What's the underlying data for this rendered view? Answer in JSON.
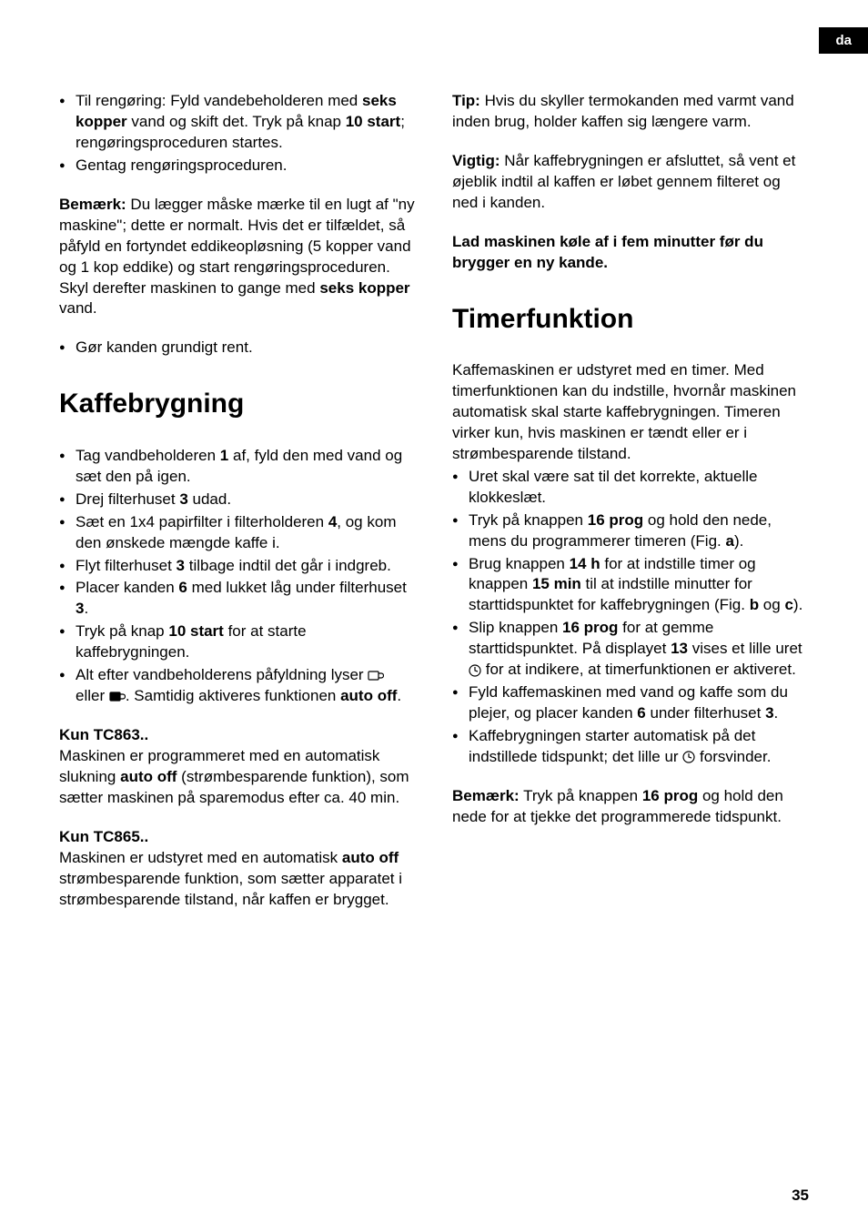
{
  "langTab": "da",
  "pageNum": "35",
  "left": {
    "topList": [
      {
        "parts": [
          {
            "t": "Til rengøring: Fyld vandebeholderen med "
          },
          {
            "t": "seks kopper",
            "b": true
          },
          {
            "t": " vand og skift det. Tryk på knap "
          },
          {
            "t": "10 start",
            "b": true
          },
          {
            "t": "; rengøringsproceduren startes."
          }
        ]
      },
      {
        "parts": [
          {
            "t": "Gentag rengøringsproceduren."
          }
        ]
      }
    ],
    "note1": {
      "parts": [
        {
          "t": "Bemærk:",
          "b": true
        },
        {
          "t": " Du lægger måske mærke til en lugt af \"ny maskine\"; dette er normalt. Hvis det er tilfældet, så påfyld en fortyndet eddikeopløsning (5 kopper vand og 1 kop eddike) og start rengøringsproceduren. Skyl derefter maskinen to gange med "
        },
        {
          "t": "seks kopper",
          "b": true
        },
        {
          "t": " vand."
        }
      ]
    },
    "list2": [
      {
        "parts": [
          {
            "t": "Gør kanden grundigt rent."
          }
        ]
      }
    ],
    "h1": "Kaffebrygning",
    "list3": [
      {
        "parts": [
          {
            "t": "Tag vandbeholderen "
          },
          {
            "t": "1",
            "b": true
          },
          {
            "t": " af, fyld den med vand og sæt den på igen."
          }
        ]
      },
      {
        "parts": [
          {
            "t": "Drej filterhuset "
          },
          {
            "t": "3",
            "b": true
          },
          {
            "t": " udad."
          }
        ]
      },
      {
        "parts": [
          {
            "t": "Sæt en 1x4 papirfilter i filterholderen "
          },
          {
            "t": "4",
            "b": true
          },
          {
            "t": ", og kom den ønskede mængde kaffe i."
          }
        ]
      },
      {
        "parts": [
          {
            "t": "Flyt filterhuset "
          },
          {
            "t": "3",
            "b": true
          },
          {
            "t": " tilbage indtil det går i indgreb."
          }
        ]
      },
      {
        "parts": [
          {
            "t": "Placer kanden "
          },
          {
            "t": "6",
            "b": true
          },
          {
            "t": " med lukket låg under filterhuset "
          },
          {
            "t": "3",
            "b": true
          },
          {
            "t": "."
          }
        ]
      },
      {
        "parts": [
          {
            "t": "Tryk på knap "
          },
          {
            "t": "10 start",
            "b": true
          },
          {
            "t": " for at starte kaffebrygningen."
          }
        ]
      },
      {
        "parts": [
          {
            "t": "Alt efter vandbeholderens påfyldning lyser "
          },
          {
            "icon": "cup"
          },
          {
            "t": " eller "
          },
          {
            "icon": "cupfull"
          },
          {
            "t": ". Samtidig aktiveres funktionen "
          },
          {
            "t": "auto off",
            "b": true
          },
          {
            "t": "."
          }
        ]
      }
    ],
    "sub1": "Kun TC863..",
    "para1": {
      "parts": [
        {
          "t": "Maskinen er programmeret med en automatisk slukning "
        },
        {
          "t": "auto off",
          "b": true
        },
        {
          "t": " (strømbesparende funktion), som sætter maskinen på sparemodus efter ca. 40 min."
        }
      ]
    },
    "sub2": "Kun TC865..",
    "para2": {
      "parts": [
        {
          "t": "Maskinen er udstyret med en automatisk "
        },
        {
          "t": "auto off",
          "b": true
        },
        {
          "t": " strømbesparende funktion, som sætter apparatet i strømbesparende tilstand, når kaffen er brygget."
        }
      ]
    }
  },
  "right": {
    "tip": {
      "parts": [
        {
          "t": "Tip:",
          "b": true
        },
        {
          "t": " Hvis du skyller termokanden med varmt vand inden brug, holder kaffen sig længere varm."
        }
      ]
    },
    "vigtig": {
      "parts": [
        {
          "t": "Vigtig:",
          "b": true
        },
        {
          "t": " Når kaffebrygningen er afsluttet, så vent et øjeblik indtil al kaffen er løbet gennem filteret og ned i kanden."
        }
      ]
    },
    "lad": {
      "parts": [
        {
          "t": "Lad maskinen køle af i fem minutter før du brygger en ny kande.",
          "b": true
        }
      ]
    },
    "h2": "Timerfunktion",
    "intro": {
      "parts": [
        {
          "t": "Kaffemaskinen er udstyret med en timer. Med timerfunktionen kan du indstille, hvornår maskinen automatisk skal starte kaffebrygningen. Timeren virker kun, hvis maskinen er tændt eller er i strømbesparende tilstand."
        }
      ]
    },
    "list": [
      {
        "parts": [
          {
            "t": "Uret skal være sat til det korrekte, aktuelle klokkeslæt."
          }
        ]
      },
      {
        "parts": [
          {
            "t": "Tryk på knappen "
          },
          {
            "t": "16 prog",
            "b": true
          },
          {
            "t": " og hold den nede, mens du programmerer timeren (Fig. "
          },
          {
            "t": "a",
            "b": true
          },
          {
            "t": ")."
          }
        ]
      },
      {
        "parts": [
          {
            "t": "Brug knappen "
          },
          {
            "t": "14 h",
            "b": true
          },
          {
            "t": " for at indstille timer og knappen "
          },
          {
            "t": "15 min",
            "b": true
          },
          {
            "t": " til at indstille minutter for starttidspunktet for kaffebrygningen (Fig. "
          },
          {
            "t": "b",
            "b": true
          },
          {
            "t": " og "
          },
          {
            "t": "c",
            "b": true
          },
          {
            "t": ")."
          }
        ]
      },
      {
        "parts": [
          {
            "t": "Slip knappen "
          },
          {
            "t": "16 prog",
            "b": true
          },
          {
            "t": " for at gemme starttidspunktet. På displayet "
          },
          {
            "t": "13",
            "b": true
          },
          {
            "t": " vises et lille uret "
          },
          {
            "icon": "clock"
          },
          {
            "t": " for at indikere, at timerfunktionen er aktiveret."
          }
        ]
      },
      {
        "parts": [
          {
            "t": "Fyld kaffemaskinen med vand og kaffe som du plejer, og placer kanden "
          },
          {
            "t": "6",
            "b": true
          },
          {
            "t": " under filterhuset "
          },
          {
            "t": "3",
            "b": true
          },
          {
            "t": "."
          }
        ]
      },
      {
        "parts": [
          {
            "t": "Kaffebrygningen starter automatisk på det indstillede tidspunkt; det lille ur "
          },
          {
            "icon": "clock"
          },
          {
            "t": " forsvinder."
          }
        ]
      }
    ],
    "note": {
      "parts": [
        {
          "t": "Bemærk:",
          "b": true
        },
        {
          "t": " Tryk på knappen "
        },
        {
          "t": "16 prog",
          "b": true
        },
        {
          "t": " og hold den nede for at tjekke det programmerede tidspunkt."
        }
      ]
    }
  }
}
